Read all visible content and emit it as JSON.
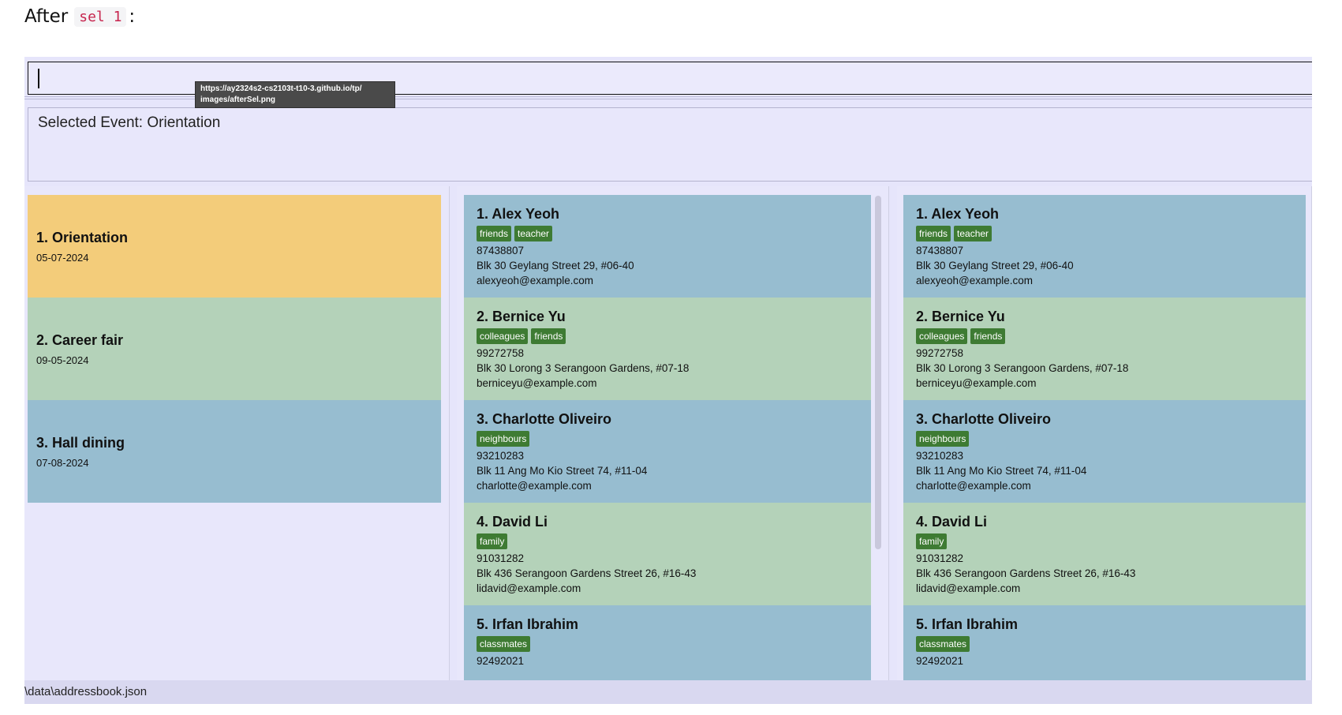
{
  "heading": {
    "prefix": "After",
    "code": "sel 1",
    "suffix": ":"
  },
  "command_box": {
    "value": ""
  },
  "tooltip": {
    "line1": "https://ay2324s2-cs2103t-t10-3.github.io/tp/",
    "line2": "images/afterSel.png"
  },
  "result_display": {
    "text": "Selected Event: Orientation"
  },
  "colors": {
    "selected": "#f3cc7a",
    "green": "#b4d2b9",
    "blue": "#97bdd0",
    "tag": "#3e7b33",
    "background": "#e6e5fb"
  },
  "events": [
    {
      "title": "1.  Orientation",
      "date": "05-07-2024"
    },
    {
      "title": "2.  Career fair",
      "date": "09-05-2024"
    },
    {
      "title": "3.  Hall dining",
      "date": "07-08-2024"
    }
  ],
  "persons": [
    {
      "name": "1.  Alex Yeoh",
      "tags": [
        "friends",
        "teacher"
      ],
      "phone": "87438807",
      "address": "Blk 30 Geylang Street 29, #06-40",
      "email": "alexyeoh@example.com"
    },
    {
      "name": "2.  Bernice Yu",
      "tags": [
        "colleagues",
        "friends"
      ],
      "phone": "99272758",
      "address": "Blk 30 Lorong 3 Serangoon Gardens, #07-18",
      "email": "berniceyu@example.com"
    },
    {
      "name": "3.  Charlotte Oliveiro",
      "tags": [
        "neighbours"
      ],
      "phone": "93210283",
      "address": "Blk 11 Ang Mo Kio Street 74, #11-04",
      "email": "charlotte@example.com"
    },
    {
      "name": "4.  David Li",
      "tags": [
        "family"
      ],
      "phone": "91031282",
      "address": "Blk 436 Serangoon Gardens Street 26, #16-43",
      "email": "lidavid@example.com"
    },
    {
      "name": "5.  Irfan Ibrahim",
      "tags": [
        "classmates"
      ],
      "phone": "92492021",
      "address": "",
      "email": ""
    }
  ],
  "status_bar": {
    "text": "\\data\\addressbook.json"
  }
}
